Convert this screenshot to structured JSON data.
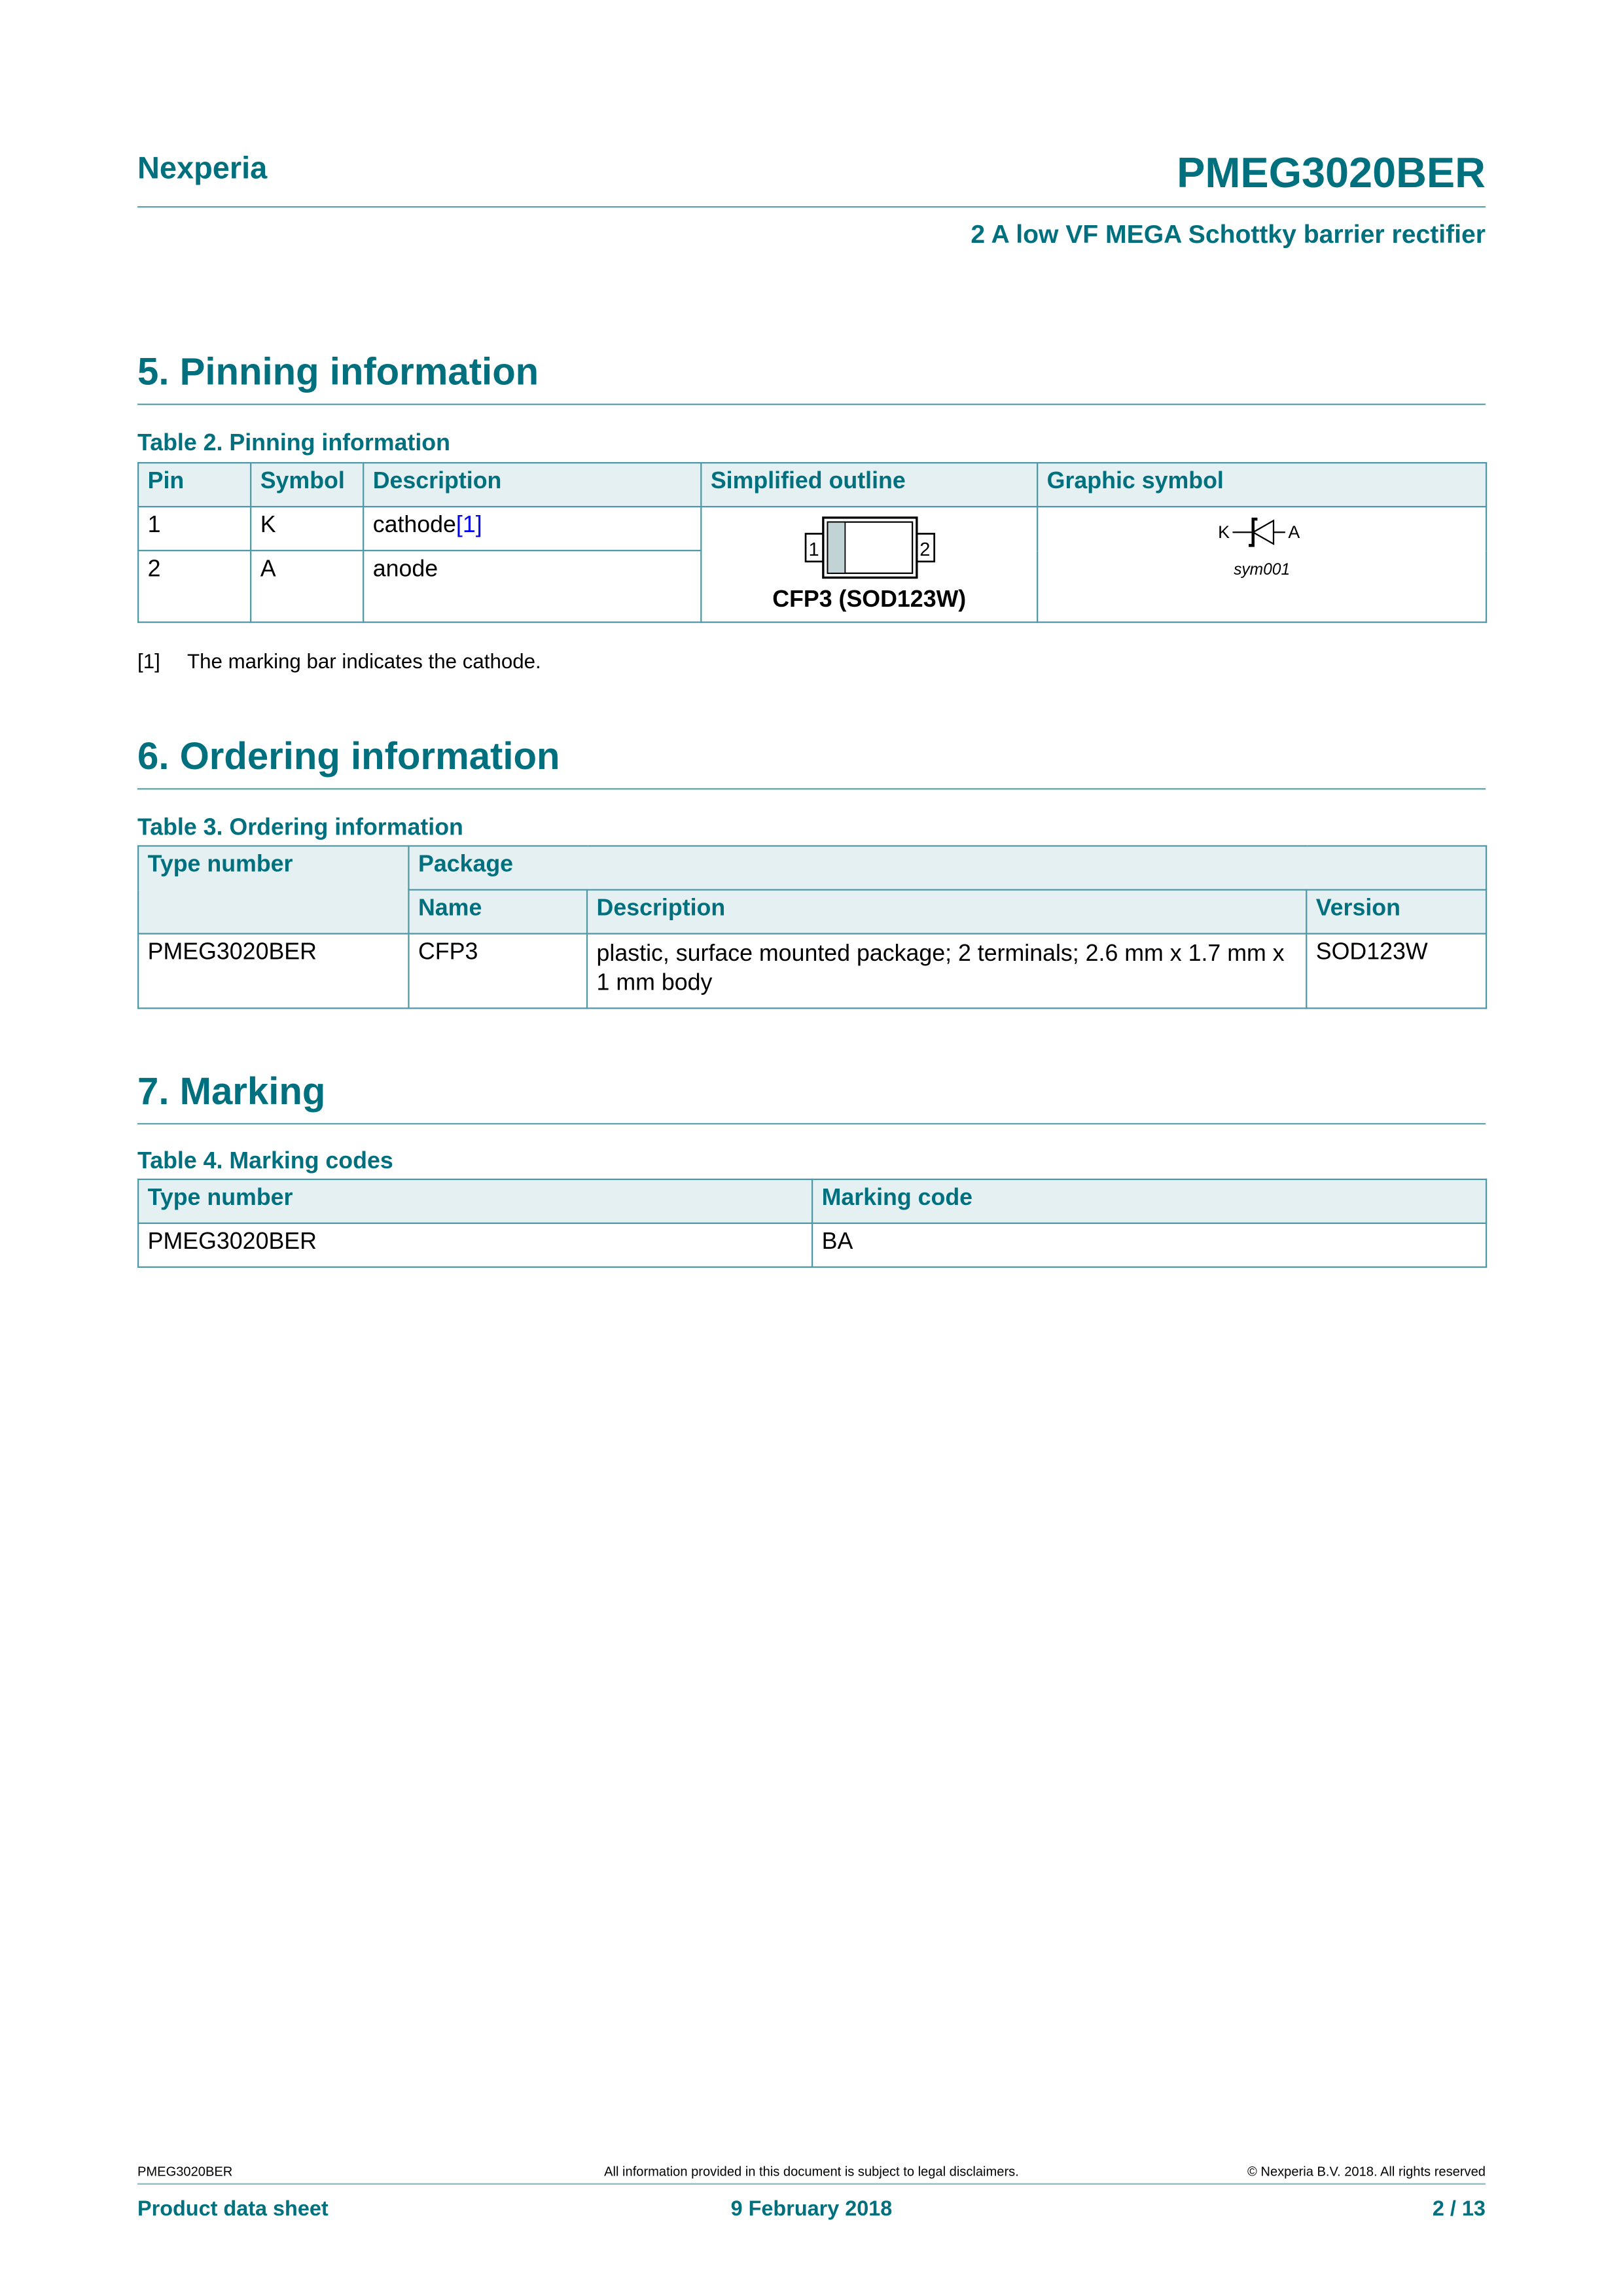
{
  "header": {
    "brand": "Nexperia",
    "product": "PMEG3020BER",
    "subtitle": "2 A low VF MEGA Schottky barrier rectifier"
  },
  "section5": {
    "title": "5.  Pinning information",
    "caption": "Table 2. Pinning information",
    "columns": [
      "Pin",
      "Symbol",
      "Description",
      "Simplified outline",
      "Graphic symbol"
    ],
    "rows": [
      {
        "pin": "1",
        "symbol": "K",
        "description": "cathode",
        "ref": "[1]"
      },
      {
        "pin": "2",
        "symbol": "A",
        "description": "anode"
      }
    ],
    "outline": {
      "pin1": "1",
      "pin2": "2",
      "label": "CFP3 (SOD123W)"
    },
    "graphic": {
      "k": "K",
      "a": "A",
      "ref": "sym001"
    },
    "footnote": {
      "ref": "[1]",
      "text": "The marking bar indicates the cathode."
    }
  },
  "section6": {
    "title": "6.  Ordering information",
    "caption": "Table 3. Ordering information",
    "columns": {
      "type": "Type number",
      "package": "Package",
      "name": "Name",
      "description": "Description",
      "version": "Version"
    },
    "row": {
      "type": "PMEG3020BER",
      "name": "CFP3",
      "description": "plastic, surface mounted package; 2 terminals; 2.6 mm x 1.7 mm x 1 mm body",
      "version": "SOD123W"
    }
  },
  "section7": {
    "title": "7.  Marking",
    "caption": "Table 4. Marking codes",
    "columns": [
      "Type number",
      "Marking code"
    ],
    "row": {
      "type": "PMEG3020BER",
      "code": "BA"
    }
  },
  "footer": {
    "doc": "PMEG3020BER",
    "disclaimer": "All information provided in this document is subject to legal disclaimers.",
    "copyright": "© Nexperia B.V. 2018. All rights reserved",
    "type": "Product data sheet",
    "date": "9 February 2018",
    "page": "2 / 13"
  },
  "colors": {
    "accent": "#00707f",
    "header_bg": "#e5f0f2"
  }
}
